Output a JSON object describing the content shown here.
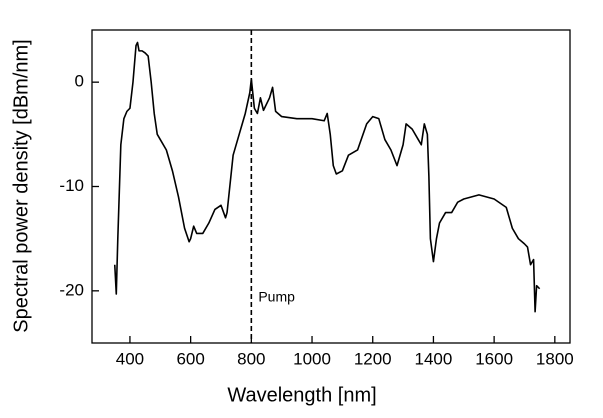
{
  "chart_data": {
    "type": "line",
    "xlabel": "Wavelength [nm]",
    "ylabel": "Spectral power density [dBm/nm]",
    "x": [
      350,
      355,
      360,
      370,
      380,
      390,
      400,
      410,
      420,
      425,
      430,
      440,
      450,
      460,
      470,
      480,
      490,
      500,
      520,
      540,
      560,
      580,
      595,
      600,
      610,
      620,
      640,
      660,
      680,
      700,
      715,
      720,
      740,
      760,
      780,
      795,
      800,
      810,
      820,
      830,
      840,
      860,
      870,
      880,
      900,
      950,
      1000,
      1040,
      1050,
      1060,
      1070,
      1080,
      1100,
      1120,
      1150,
      1180,
      1200,
      1220,
      1240,
      1260,
      1280,
      1300,
      1310,
      1330,
      1350,
      1360,
      1370,
      1380,
      1385,
      1390,
      1400,
      1410,
      1420,
      1440,
      1460,
      1480,
      1500,
      1550,
      1600,
      1640,
      1660,
      1680,
      1700,
      1710,
      1720,
      1730,
      1735,
      1740,
      1750
    ],
    "values": [
      -17.5,
      -20.3,
      -15,
      -6,
      -3.5,
      -2.8,
      -2.5,
      0,
      3.5,
      3.8,
      3,
      3,
      2.8,
      2.5,
      0,
      -3,
      -5,
      -5.5,
      -6.5,
      -8.5,
      -11,
      -14,
      -15.3,
      -15,
      -13.8,
      -14.5,
      -14.5,
      -13.5,
      -12.2,
      -11.8,
      -13,
      -12.5,
      -7,
      -5,
      -3,
      -1,
      0.3,
      -2.5,
      -3,
      -1.5,
      -2.7,
      -1.5,
      -0.5,
      -2.8,
      -3.3,
      -3.5,
      -3.5,
      -3.7,
      -3,
      -5,
      -8,
      -8.8,
      -8.5,
      -7,
      -6.5,
      -4,
      -3.3,
      -3.5,
      -5.5,
      -6.5,
      -8,
      -6,
      -4,
      -4.5,
      -5.5,
      -6,
      -4,
      -5,
      -9,
      -15,
      -17.2,
      -15,
      -13.5,
      -12.5,
      -12.5,
      -11.5,
      -11.2,
      -10.8,
      -11.2,
      -12,
      -14,
      -15,
      -15.5,
      -15.8,
      -17.5,
      -17,
      -22,
      -19.5,
      -19.8
    ],
    "color": "#000000",
    "xlim": [
      275,
      1850
    ],
    "ylim": [
      -25,
      5
    ],
    "xticks": [
      400,
      600,
      800,
      1000,
      1200,
      1400,
      1600,
      1800
    ],
    "yticks": [
      -20,
      -10,
      0
    ],
    "annotation": {
      "text": "Pump",
      "x": 800
    }
  }
}
